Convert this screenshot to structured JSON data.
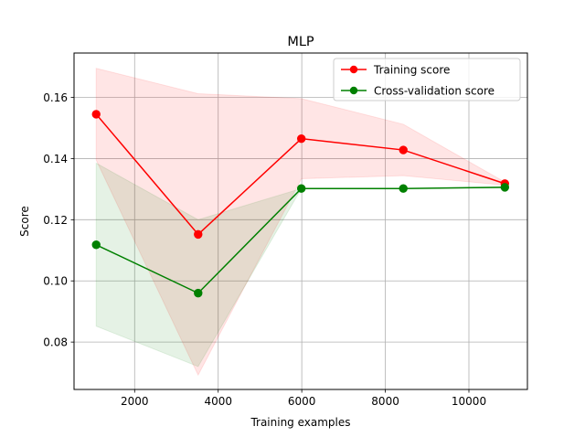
{
  "chart_data": {
    "type": "line",
    "title": "MLP",
    "xlabel": "Training examples",
    "ylabel": "Score",
    "xlim": [
      550,
      11400
    ],
    "ylim": [
      0.0645,
      0.1745
    ],
    "xticks": [
      2000,
      4000,
      6000,
      8000,
      10000
    ],
    "yticks": [
      0.08,
      0.1,
      0.12,
      0.14,
      0.16
    ],
    "grid": true,
    "legend_position": "top-right",
    "series": [
      {
        "name": "Training score",
        "color": "#ff0000",
        "band_color": "#ff0000",
        "x": [
          1080,
          3520,
          5990,
          8430,
          10860
        ],
        "y": [
          0.1545,
          0.1152,
          0.1465,
          0.1428,
          0.1318
        ],
        "band_upper": [
          0.1695,
          0.1612,
          0.1596,
          0.1512,
          0.1323
        ],
        "band_lower": [
          0.1395,
          0.0692,
          0.1334,
          0.1344,
          0.1313
        ]
      },
      {
        "name": "Cross-validation score",
        "color": "#008000",
        "band_color": "#008000",
        "x": [
          1080,
          3520,
          5990,
          8430,
          10860
        ],
        "y": [
          0.1118,
          0.096,
          0.1302,
          0.1302,
          0.1306
        ],
        "band_upper": [
          0.1385,
          0.12,
          0.1302,
          0.1302,
          0.1308
        ],
        "band_lower": [
          0.0852,
          0.072,
          0.1302,
          0.1302,
          0.1304
        ]
      }
    ]
  }
}
